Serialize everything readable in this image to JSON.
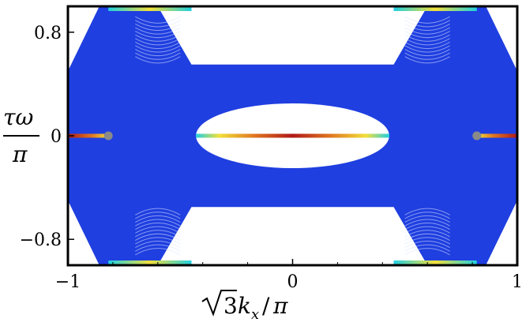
{
  "chart_data": {
    "type": "scatter",
    "title": "",
    "xlabel": "√3 kₓ/π",
    "ylabel": "τω / π",
    "xlim": [
      -1,
      1
    ],
    "ylim": [
      -1,
      1
    ],
    "grid": false,
    "x_ticks": [
      -1,
      0,
      1
    ],
    "x_tick_labels": [
      "−1",
      "0",
      "1"
    ],
    "y_ticks": [
      0.8,
      0,
      -0.8
    ],
    "y_tick_labels": [
      "0.8",
      "0",
      "−0.8"
    ],
    "bulk_band_color": "#1f3fe0",
    "edge_mode_colors": [
      "#1f3fe0",
      "#20d0e0",
      "#f2e03a",
      "#e07820",
      "#b01818"
    ],
    "bulk_band_outline": [
      [
        -1,
        0.5
      ],
      [
        -0.86,
        1
      ],
      [
        -0.8,
        1
      ],
      [
        -0.6,
        1
      ],
      [
        -0.45,
        0.55
      ],
      [
        0,
        0.55
      ],
      [
        0.45,
        0.55
      ],
      [
        0.6,
        1
      ],
      [
        0.8,
        1
      ],
      [
        0.86,
        1
      ],
      [
        1,
        0.5
      ],
      [
        1,
        -0.5
      ],
      [
        0.86,
        -1
      ],
      [
        0.8,
        -1
      ],
      [
        0.6,
        -1
      ],
      [
        0.45,
        -0.55
      ],
      [
        0,
        -0.55
      ],
      [
        -0.45,
        -0.55
      ],
      [
        -0.6,
        -1
      ],
      [
        -0.8,
        -1
      ],
      [
        -0.86,
        -1
      ],
      [
        -1,
        -0.5
      ]
    ],
    "gap_ellipse": {
      "center": [
        0,
        0
      ],
      "half_width": 0.43,
      "half_height": 0.25
    },
    "dirac_points": [
      [
        -0.82,
        0
      ],
      [
        0.82,
        0
      ]
    ],
    "edge_states_zero": [
      {
        "x": [
          -1,
          -0.82
        ],
        "colors": "red-to-yellow"
      },
      {
        "x": [
          -0.43,
          0.43
        ],
        "colors": "cyan-yellow-red-yellow-cyan"
      },
      {
        "x": [
          0.82,
          1
        ],
        "colors": "yellow-to-red"
      }
    ],
    "edge_states_boundary": [
      {
        "x": [
          -0.82,
          -0.45
        ],
        "y": 1
      },
      {
        "x": [
          0.45,
          0.82
        ],
        "y": 1
      },
      {
        "x": [
          -0.82,
          -0.45
        ],
        "y": -1
      },
      {
        "x": [
          0.45,
          0.82
        ],
        "y": -1
      }
    ],
    "dirac_point_color": "#8a8a8a"
  }
}
